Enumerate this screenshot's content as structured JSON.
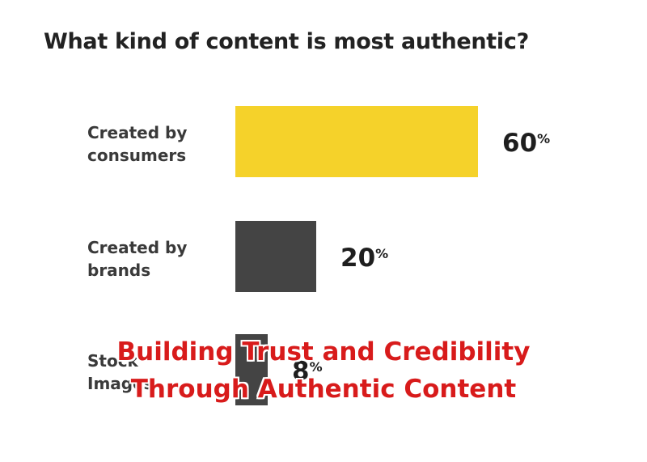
{
  "chart_data": {
    "type": "bar",
    "orientation": "horizontal",
    "title": "What kind of content is most authentic?",
    "categories": [
      [
        "Created by",
        "consumers"
      ],
      [
        "Created by",
        "brands"
      ],
      [
        "Stock",
        "Images"
      ]
    ],
    "values": [
      60,
      20,
      8
    ],
    "value_labels": [
      "60",
      "20",
      "8"
    ],
    "value_unit": "%",
    "colors": [
      "#f5d22a",
      "#444444",
      "#444444"
    ],
    "xlim": [
      0,
      100
    ],
    "grid": false,
    "legend": "none"
  },
  "overlay": {
    "line1": "Building Trust and Credibility",
    "line2": "Through Authentic Content",
    "color": "#d81b1b"
  }
}
